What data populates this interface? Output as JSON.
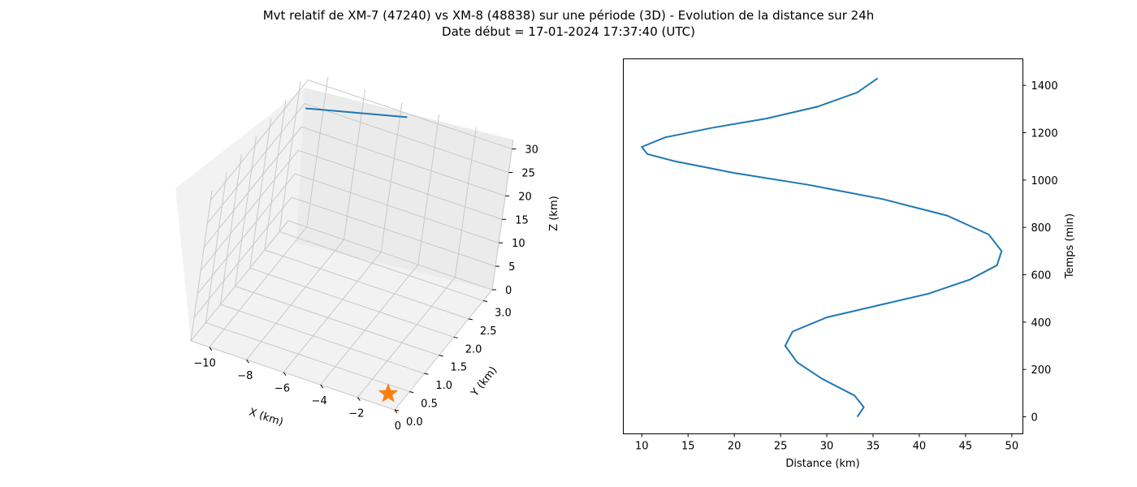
{
  "title": "Mvt relatif de XM-7 (47240) vs XM-8 (48838) sur une période (3D) - Evolution de la distance sur 24h",
  "subtitle": "Date début = 17-01-2024 17:37:40 (UTC)",
  "chart_data": [
    {
      "type": "line3d",
      "xlabel": "X (km)",
      "ylabel": "Y (km)",
      "zlabel": "Z (km)",
      "x_ticks": [
        "−10",
        "−8",
        "−6",
        "−4",
        "−2",
        "0"
      ],
      "y_ticks": [
        "0.0",
        "0.5",
        "1.0",
        "1.5",
        "2.0",
        "2.5",
        "3.0"
      ],
      "z_ticks": [
        "0",
        "5",
        "10",
        "15",
        "20",
        "25",
        "30"
      ],
      "xlim": [
        -11,
        0
      ],
      "ylim": [
        0,
        3.3
      ],
      "zlim": [
        0,
        32
      ],
      "grid": true,
      "series": [
        {
          "color": "#1f77b4",
          "points": [
            [
              -10.8,
              3.2,
              25.0
            ],
            [
              -5.5,
              3.2,
              30.2
            ]
          ]
        }
      ],
      "markers": [
        {
          "shape": "star",
          "color": "#ff7f0e",
          "point": [
            0,
            0,
            0
          ]
        }
      ]
    },
    {
      "type": "line",
      "xlabel": "Distance (km)",
      "ylabel": "Temps (min)",
      "x_ticks": [
        10,
        15,
        20,
        25,
        30,
        35,
        40,
        45,
        50
      ],
      "y_ticks": [
        0,
        200,
        400,
        600,
        800,
        1000,
        1200,
        1400
      ],
      "xlim": [
        8,
        51.2
      ],
      "ylim": [
        -72,
        1512
      ],
      "grid": false,
      "series": [
        {
          "color": "#1f77b4",
          "x": [
            33.3,
            34.0,
            33.0,
            29.5,
            26.8,
            25.5,
            26.3,
            30.0,
            35.5,
            41.0,
            45.5,
            48.4,
            48.9,
            47.5,
            43.0,
            36.0,
            28.0,
            20.0,
            13.5,
            10.6,
            10.0,
            12.5,
            17.5,
            23.5,
            29.0,
            33.3,
            35.5
          ],
          "y": [
            0,
            40,
            90,
            160,
            230,
            300,
            360,
            420,
            470,
            520,
            580,
            640,
            700,
            770,
            850,
            920,
            980,
            1030,
            1080,
            1110,
            1140,
            1180,
            1220,
            1260,
            1310,
            1370,
            1430
          ]
        }
      ]
    }
  ]
}
